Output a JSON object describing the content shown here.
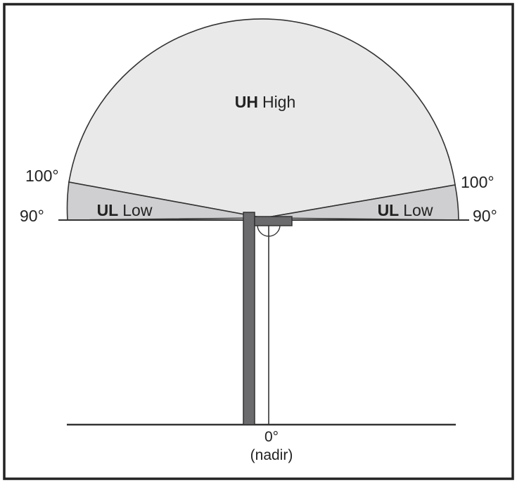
{
  "colors": {
    "frame": "#222222",
    "uh_fill": "#e9e9ea",
    "ul_fill": "#cfcfd1",
    "pole": "#6b6b6d",
    "line": "#333333",
    "text": "#222222"
  },
  "zones": {
    "uh": {
      "code": "UH",
      "label": "High"
    },
    "ul_left": {
      "code": "UL",
      "label": "Low"
    },
    "ul_right": {
      "code": "UL",
      "label": "Low"
    }
  },
  "angles": {
    "left_100": "100°",
    "right_100": "100°",
    "left_90": "90°",
    "right_90": "90°",
    "nadir_angle": "0°",
    "nadir_label": "(nadir)"
  }
}
